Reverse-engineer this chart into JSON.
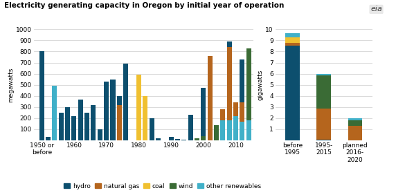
{
  "title": "Electricity generating capacity in Oregon by initial year of operation",
  "left_ylabel": "megawatts",
  "right_ylabel": "gigawatts",
  "colors": {
    "hydro": "#0d4f6e",
    "natural_gas": "#b5651d",
    "coal": "#f0c030",
    "wind": "#3a6b35",
    "other_renewables": "#40b0c8"
  },
  "left_x": [
    1950,
    1952,
    1954,
    1956,
    1958,
    1960,
    1962,
    1964,
    1966,
    1968,
    1970,
    1972,
    1974,
    1976,
    1978,
    1980,
    1982,
    1984,
    1986,
    1988,
    1990,
    1992,
    1994,
    1996,
    1998,
    2000,
    2002,
    2004,
    2006,
    2008,
    2010,
    2012,
    2014
  ],
  "left_data": {
    "hydro": [
      800,
      30,
      0,
      250,
      300,
      220,
      370,
      250,
      320,
      100,
      530,
      550,
      400,
      690,
      0,
      190,
      40,
      200,
      20,
      0,
      30,
      10,
      5,
      230,
      5,
      470,
      230,
      0,
      270,
      890,
      170,
      730,
      0
    ],
    "natural_gas": [
      0,
      0,
      0,
      0,
      0,
      0,
      0,
      0,
      0,
      0,
      0,
      0,
      320,
      0,
      0,
      0,
      0,
      0,
      0,
      0,
      0,
      0,
      0,
      0,
      0,
      0,
      760,
      0,
      280,
      840,
      340,
      340,
      210
    ],
    "coal": [
      0,
      0,
      0,
      0,
      0,
      0,
      0,
      0,
      0,
      0,
      0,
      0,
      0,
      0,
      0,
      590,
      400,
      0,
      0,
      0,
      0,
      0,
      0,
      0,
      0,
      0,
      0,
      0,
      0,
      0,
      0,
      0,
      0
    ],
    "wind": [
      0,
      0,
      0,
      0,
      0,
      0,
      0,
      0,
      0,
      0,
      0,
      0,
      0,
      0,
      0,
      0,
      0,
      0,
      0,
      0,
      0,
      0,
      0,
      0,
      20,
      40,
      0,
      140,
      50,
      0,
      110,
      0,
      830
    ],
    "other_renewables": [
      0,
      0,
      490,
      0,
      0,
      0,
      0,
      0,
      0,
      0,
      0,
      0,
      0,
      0,
      0,
      0,
      0,
      0,
      0,
      0,
      0,
      0,
      0,
      0,
      0,
      0,
      0,
      0,
      180,
      180,
      220,
      170,
      180
    ]
  },
  "left_ylim": [
    0,
    1000
  ],
  "left_yticks": [
    0,
    100,
    200,
    300,
    400,
    500,
    600,
    700,
    800,
    900,
    1000
  ],
  "left_xticks": [
    1950,
    1960,
    1970,
    1980,
    1990,
    2000,
    2010
  ],
  "left_xticklabels": [
    "1950 or\nbefore",
    "1960",
    "1970",
    "1980",
    "1990",
    "2000",
    "2010"
  ],
  "right_categories": [
    "before\n1995",
    "1995-\n2015",
    "planned\n2016-\n2020"
  ],
  "right_data": {
    "hydro": [
      8.5,
      0.05,
      0.0
    ],
    "natural_gas": [
      0.3,
      2.8,
      1.3
    ],
    "coal": [
      0.5,
      0.0,
      0.0
    ],
    "wind": [
      0.0,
      3.0,
      0.5
    ],
    "other_renewables": [
      0.35,
      0.12,
      0.18
    ]
  },
  "right_ylim": [
    0,
    10
  ],
  "right_yticks": [
    0,
    1,
    2,
    3,
    4,
    5,
    6,
    7,
    8,
    9,
    10
  ],
  "legend_labels": [
    "hydro",
    "natural gas",
    "coal",
    "wind",
    "other renewables"
  ],
  "legend_keys": [
    "hydro",
    "natural_gas",
    "coal",
    "wind",
    "other_renewables"
  ],
  "bg_color": "#ffffff",
  "grid_color": "#cccccc"
}
